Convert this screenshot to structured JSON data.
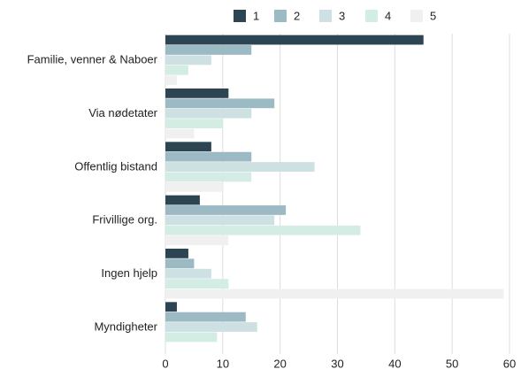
{
  "chart_data": {
    "type": "hbar",
    "categories": [
      "Familie, venner & Naboer",
      "Via nødetater",
      "Offentlig bistand",
      "Frivillige org.",
      "Ingen hjelp",
      "Myndigheter"
    ],
    "series": [
      {
        "name": "1",
        "color": "#2d4452",
        "values": [
          45,
          11,
          8,
          6,
          4,
          2
        ]
      },
      {
        "name": "2",
        "color": "#9bbac4",
        "values": [
          15,
          19,
          15,
          21,
          5,
          14
        ]
      },
      {
        "name": "3",
        "color": "#cde0e2",
        "values": [
          8,
          15,
          26,
          19,
          8,
          16
        ]
      },
      {
        "name": "4",
        "color": "#d3ede4",
        "values": [
          4,
          10,
          15,
          34,
          11,
          9
        ]
      },
      {
        "name": "5",
        "color": "#f0f0f0",
        "values": [
          2,
          5,
          10,
          11,
          59,
          0
        ]
      }
    ],
    "xlim": [
      0,
      60
    ],
    "xticks": [
      0,
      10,
      20,
      30,
      40,
      50,
      60
    ],
    "grid": true,
    "legend": "top"
  }
}
